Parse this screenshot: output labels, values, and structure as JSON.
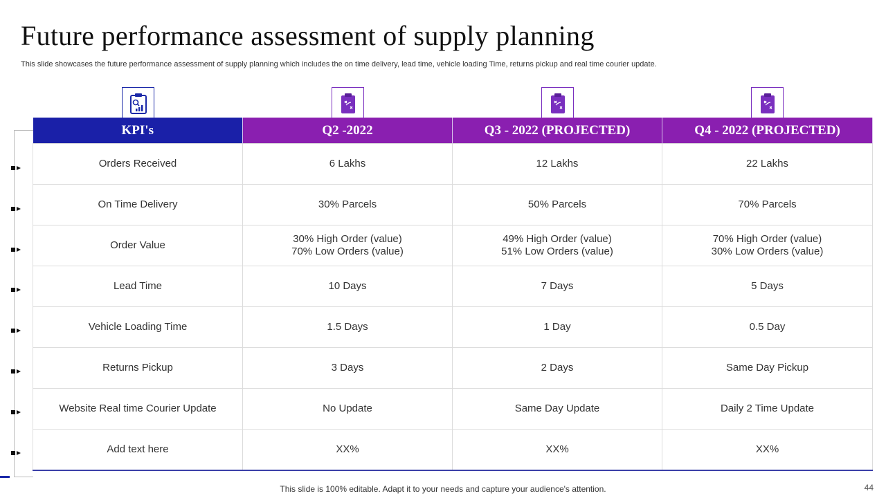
{
  "title": "Future performance assessment of supply planning",
  "subtitle": "This slide showcases the future performance assessment of supply planning which includes the on time delivery,  lead time, vehicle loading Time, returns pickup and real time courier update.",
  "table": {
    "headers": [
      "KPI's",
      "Q2 -2022",
      "Q3 - 2022 (PROJECTED)",
      "Q4 - 2022 (PROJECTED)"
    ],
    "rows": [
      [
        "Orders Received",
        "6 Lakhs",
        "12 Lakhs",
        "22 Lakhs"
      ],
      [
        "On Time Delivery",
        "30% Parcels",
        "50% Parcels",
        "70% Parcels"
      ],
      [
        "Order Value",
        "30% High Order (value)\n70% Low Orders (value)",
        "49% High Order (value)\n51% Low Orders (value)",
        "70% High Order (value)\n30% Low Orders (value)"
      ],
      [
        "Lead Time",
        "10 Days",
        "7 Days",
        "5 Days"
      ],
      [
        "Vehicle Loading Time",
        "1.5 Days",
        "1 Day",
        "0.5 Day"
      ],
      [
        "Returns Pickup",
        "3 Days",
        "2 Days",
        "Same Day Pickup"
      ],
      [
        "Website Real time Courier Update",
        "No Update",
        "Same Day Update",
        "Daily 2 Time Update"
      ],
      [
        "Add text here",
        "XX%",
        "XX%",
        "XX%"
      ]
    ]
  },
  "icons": [
    "report-chart-icon",
    "clipboard-icon",
    "clipboard-icon",
    "clipboard-icon"
  ],
  "colors": {
    "kpi_header": "#1a20a8",
    "quarter_header": "#8a1fb0"
  },
  "footer": "This slide is 100% editable. Adapt it to your needs and capture your audience's attention.",
  "page_number": "44"
}
